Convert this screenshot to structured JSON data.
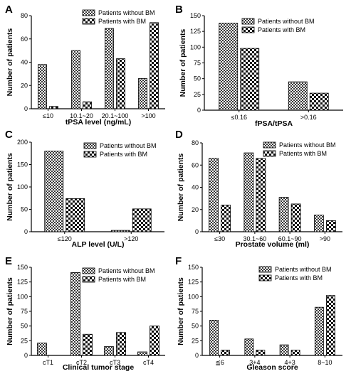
{
  "chart_data": [
    {
      "type": "bar",
      "panel": "A",
      "categories": [
        "≤10",
        "10.1~20",
        "20.1~100",
        ">100"
      ],
      "series": [
        {
          "name": "Patients without BM",
          "values": [
            38,
            50,
            69,
            26
          ]
        },
        {
          "name": "Patients with BM",
          "values": [
            2,
            6,
            43,
            74
          ]
        }
      ],
      "xlabel": "tPSA level (ng/mL)",
      "ylabel": "Number of patients",
      "ylim": [
        0,
        80
      ],
      "yticks": [
        0,
        20,
        40,
        60,
        80
      ],
      "grid": false,
      "legend_position": "top-left"
    },
    {
      "type": "bar",
      "panel": "B",
      "categories": [
        "≤0.16",
        ">0.16"
      ],
      "series": [
        {
          "name": "Patients without BM",
          "values": [
            138,
            45
          ]
        },
        {
          "name": "Patients with BM",
          "values": [
            98,
            27
          ]
        }
      ],
      "xlabel": "fPSA/tPSA",
      "ylabel": "Number of patients",
      "ylim": [
        0,
        150
      ],
      "yticks": [
        0,
        25,
        50,
        75,
        100,
        125,
        150
      ],
      "grid": false,
      "legend_position": "top-right"
    },
    {
      "type": "bar",
      "panel": "C",
      "categories": [
        "≤120",
        ">120"
      ],
      "series": [
        {
          "name": "Patients  without BM",
          "values": [
            180,
            3
          ]
        },
        {
          "name": "Patients with BM",
          "values": [
            74,
            51
          ]
        }
      ],
      "xlabel": "ALP level (U/L)",
      "ylabel": "Number of patients",
      "ylim": [
        0,
        200
      ],
      "yticks": [
        0,
        50,
        100,
        150,
        200
      ],
      "grid": false,
      "legend_position": "top-right"
    },
    {
      "type": "bar",
      "panel": "D",
      "categories": [
        "≤30",
        "30.1~60",
        "60.1~90",
        ">90"
      ],
      "series": [
        {
          "name": "Patients without BM",
          "values": [
            66,
            71,
            31,
            15
          ]
        },
        {
          "name": "Patients with BM",
          "values": [
            24,
            66,
            25,
            10
          ]
        }
      ],
      "xlabel": "Prostate volume (ml)",
      "ylabel": "Number of patients",
      "ylim": [
        0,
        80
      ],
      "yticks": [
        0,
        20,
        40,
        60,
        80
      ],
      "grid": false,
      "legend_position": "top-right"
    },
    {
      "type": "bar",
      "panel": "E",
      "categories": [
        "cT1",
        "cT2",
        "cT3",
        "cT4"
      ],
      "series": [
        {
          "name": "Patients without BM",
          "values": [
            21,
            141,
            15,
            6
          ]
        },
        {
          "name": "Patients with BM",
          "values": [
            0,
            36,
            39,
            50
          ]
        }
      ],
      "xlabel": "Clinical tumor stage",
      "ylabel": "Number of patients",
      "ylim": [
        0,
        150
      ],
      "yticks": [
        0,
        25,
        50,
        75,
        100,
        125,
        150
      ],
      "grid": false,
      "legend_position": "top-right"
    },
    {
      "type": "bar",
      "panel": "F",
      "categories": [
        "≦6",
        "3+4",
        "4+3",
        "8~10"
      ],
      "series": [
        {
          "name": "Patients without BM",
          "values": [
            60,
            28,
            18,
            82
          ]
        },
        {
          "name": "Patients with BM",
          "values": [
            9,
            9,
            9,
            102
          ]
        }
      ],
      "xlabel": "Gleason score",
      "ylabel": "Number of patients",
      "ylim": [
        0,
        150
      ],
      "yticks": [
        0,
        25,
        50,
        75,
        100,
        125,
        150
      ],
      "grid": false,
      "legend_position": "top-right"
    }
  ]
}
